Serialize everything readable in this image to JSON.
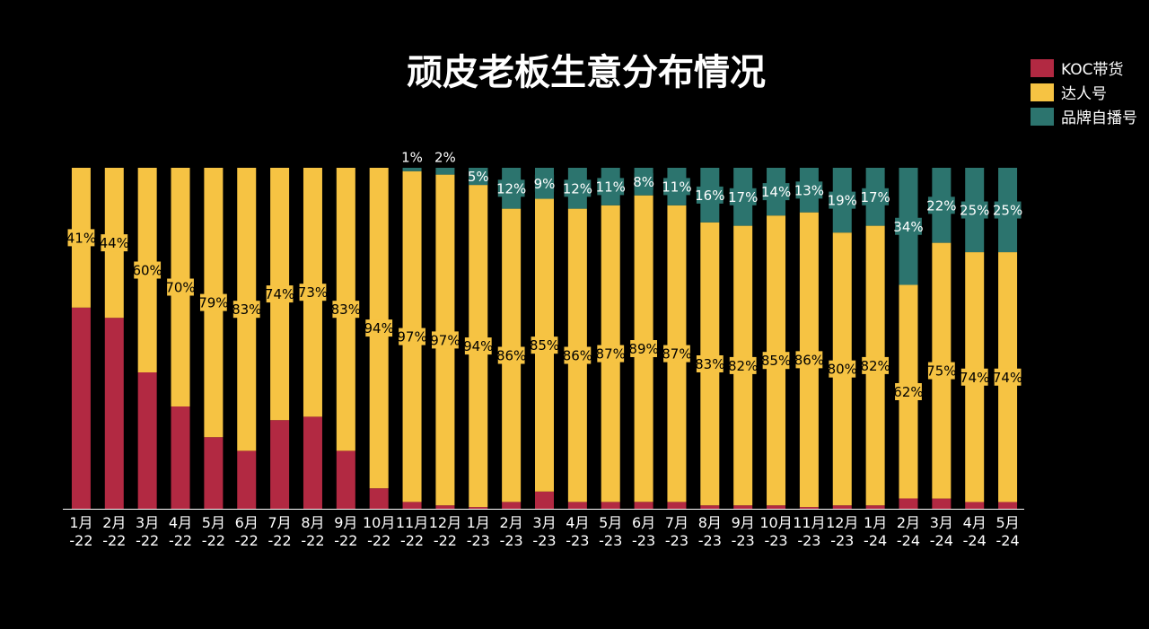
{
  "chart_data": {
    "type": "bar",
    "stacked": true,
    "normalized": true,
    "title": "顽皮老板生意分布情况",
    "categories": [
      "1月-22",
      "2月-22",
      "3月-22",
      "4月-22",
      "5月-22",
      "6月-22",
      "7月-22",
      "8月-22",
      "9月-22",
      "10月-22",
      "11月-22",
      "12月-22",
      "1月-23",
      "2月-23",
      "3月-23",
      "4月-23",
      "5月-23",
      "6月-23",
      "7月-23",
      "8月-23",
      "9月-23",
      "10月-23",
      "11月-23",
      "12月-23",
      "1月-24",
      "2月-24",
      "3月-24",
      "4月-24",
      "5月-24"
    ],
    "category_lines": [
      [
        "1月",
        "-22"
      ],
      [
        "2月",
        "-22"
      ],
      [
        "3月",
        "-22"
      ],
      [
        "4月",
        "-22"
      ],
      [
        "5月",
        "-22"
      ],
      [
        "6月",
        "-22"
      ],
      [
        "7月",
        "-22"
      ],
      [
        "8月",
        "-22"
      ],
      [
        "9月",
        "-22"
      ],
      [
        "10月",
        "-22"
      ],
      [
        "11月",
        "-22"
      ],
      [
        "12月",
        "-22"
      ],
      [
        "1月",
        "-23"
      ],
      [
        "2月",
        "-23"
      ],
      [
        "3月",
        "-23"
      ],
      [
        "4月",
        "-23"
      ],
      [
        "5月",
        "-23"
      ],
      [
        "6月",
        "-23"
      ],
      [
        "7月",
        "-23"
      ],
      [
        "8月",
        "-23"
      ],
      [
        "9月",
        "-23"
      ],
      [
        "10月",
        "-23"
      ],
      [
        "11月",
        "-23"
      ],
      [
        "12月",
        "-23"
      ],
      [
        "1月",
        "-24"
      ],
      [
        "2月",
        "-24"
      ],
      [
        "3月",
        "-24"
      ],
      [
        "4月",
        "-24"
      ],
      [
        "5月",
        "-24"
      ]
    ],
    "series": [
      {
        "name": "KOC带货",
        "color": "#b22942",
        "values": [
          59,
          56,
          40,
          30,
          21,
          17,
          26,
          27,
          17,
          6,
          2,
          1,
          0.5,
          2,
          5,
          2,
          2,
          2,
          2,
          1,
          1,
          1,
          0.5,
          1,
          1,
          3,
          3,
          2,
          2
        ],
        "labels": [
          "",
          "",
          "",
          "",
          "",
          "",
          "",
          "",
          "",
          "",
          "",
          "",
          "",
          "",
          "",
          "",
          "",
          "",
          "",
          "",
          "",
          "",
          "",
          "",
          "",
          "",
          "",
          "",
          ""
        ]
      },
      {
        "name": "达人号",
        "color": "#f6c343",
        "values": [
          41,
          44,
          60,
          70,
          79,
          83,
          74,
          73,
          83,
          94,
          97,
          97,
          94,
          86,
          85,
          86,
          87,
          89,
          87,
          83,
          82,
          85,
          86,
          80,
          82,
          62,
          75,
          74,
          74
        ],
        "labels": [
          "41%",
          "44%",
          "60%",
          "70%",
          "79%",
          "83%",
          "74%",
          "73%",
          "83%",
          "94%",
          "97%",
          "97%",
          "94%",
          "86%",
          "85%",
          "86%",
          "87%",
          "89%",
          "87%",
          "83%",
          "82%",
          "85%",
          "86%",
          "80%",
          "82%",
          "62%",
          "75%",
          "74%",
          "74%"
        ]
      },
      {
        "name": "品牌自播号",
        "color": "#2c746e",
        "values": [
          0,
          0,
          0,
          0,
          0,
          0,
          0,
          0,
          0,
          0,
          1,
          2,
          5,
          12,
          9,
          12,
          11,
          8,
          11,
          16,
          17,
          14,
          13,
          19,
          17,
          34,
          22,
          25,
          25
        ],
        "labels": [
          "",
          "",
          "",
          "",
          "",
          "",
          "",
          "",
          "",
          "",
          "1%",
          "2%",
          "5%",
          "12%",
          "9%",
          "12%",
          "11%",
          "8%",
          "11%",
          "16%",
          "17%",
          "14%",
          "13%",
          "19%",
          "17%",
          "34%",
          "22%",
          "25%",
          "25%"
        ]
      }
    ],
    "legend": "top-right",
    "grid": false
  }
}
